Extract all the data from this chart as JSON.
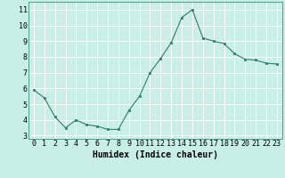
{
  "x": [
    0,
    1,
    2,
    3,
    4,
    5,
    6,
    7,
    8,
    9,
    10,
    11,
    12,
    13,
    14,
    15,
    16,
    17,
    18,
    19,
    20,
    21,
    22,
    23
  ],
  "y": [
    5.9,
    5.4,
    4.2,
    3.5,
    4.0,
    3.7,
    3.6,
    3.4,
    3.4,
    4.6,
    5.5,
    7.0,
    7.9,
    8.9,
    10.5,
    11.0,
    9.2,
    9.0,
    8.85,
    8.2,
    7.85,
    7.8,
    7.6,
    7.55
  ],
  "line_color": "#2e7d6e",
  "marker": "s",
  "marker_size": 2.0,
  "bg_color": "#c8eee8",
  "grid_color": "#ffffff",
  "grid_minor_color": "#ddf0ea",
  "xlabel": "Humidex (Indice chaleur)",
  "xlim": [
    -0.5,
    23.5
  ],
  "ylim": [
    2.8,
    11.5
  ],
  "yticks": [
    3,
    4,
    5,
    6,
    7,
    8,
    9,
    10,
    11
  ],
  "xtick_labels": [
    "0",
    "1",
    "2",
    "3",
    "4",
    "5",
    "6",
    "7",
    "8",
    "9",
    "10",
    "11",
    "12",
    "13",
    "14",
    "15",
    "16",
    "17",
    "18",
    "19",
    "20",
    "21",
    "22",
    "23"
  ],
  "axis_fontsize": 6.5,
  "tick_fontsize": 6.0,
  "xlabel_fontsize": 7.0,
  "linewidth": 0.8
}
